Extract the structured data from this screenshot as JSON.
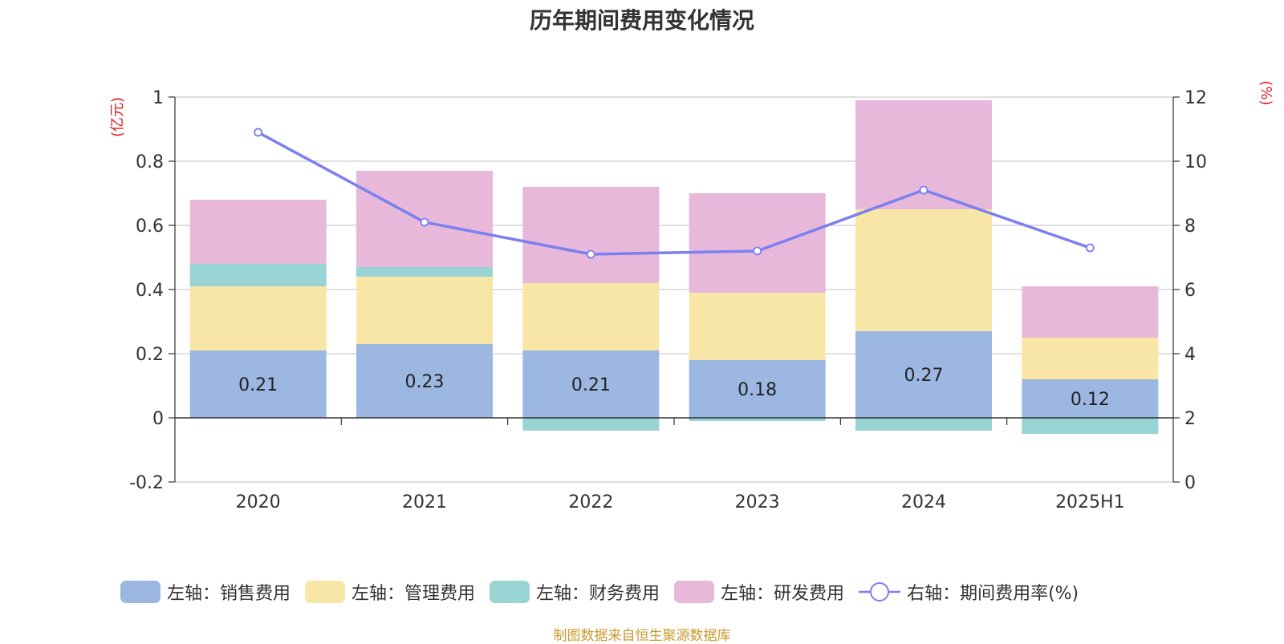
{
  "title": "历年期间费用变化情况",
  "source": "制图数据来自恒生聚源数据库",
  "chart_data": {
    "type": "bar",
    "stacked": true,
    "categories": [
      "2020",
      "2021",
      "2022",
      "2023",
      "2024",
      "2025H1"
    ],
    "left_axis": {
      "label": "(亿元)",
      "ylim": [
        -0.2,
        1
      ],
      "ticks": [
        "-0.2",
        "0",
        "0.2",
        "0.4",
        "0.6",
        "0.8",
        "1"
      ]
    },
    "right_axis": {
      "label": "(%)",
      "ylim": [
        0,
        12
      ],
      "ticks": [
        "0",
        "2",
        "4",
        "6",
        "8",
        "10",
        "12"
      ]
    },
    "grid": true,
    "legend_position": "bottom",
    "series": [
      {
        "name": "左轴：销售费用",
        "axis": "left",
        "color": "#9cb8e2",
        "values": [
          0.21,
          0.23,
          0.21,
          0.18,
          0.27,
          0.12
        ],
        "labels": [
          "0.21",
          "0.23",
          "0.21",
          "0.18",
          "0.27",
          "0.12"
        ]
      },
      {
        "name": "左轴：管理费用",
        "axis": "left",
        "color": "#f8e6a6",
        "values": [
          0.2,
          0.21,
          0.21,
          0.21,
          0.38,
          0.13
        ]
      },
      {
        "name": "左轴：财务费用",
        "axis": "left",
        "color": "#97d4d3",
        "values": [
          0.07,
          0.03,
          -0.04,
          -0.01,
          -0.04,
          -0.05
        ]
      },
      {
        "name": "左轴：研发费用",
        "axis": "left",
        "color": "#e7b8da",
        "values": [
          0.2,
          0.3,
          0.3,
          0.31,
          0.34,
          0.16
        ]
      },
      {
        "name": "右轴：期间费用率(%)",
        "axis": "right",
        "type": "line",
        "color": "#7b7ff0",
        "values": [
          10.9,
          8.1,
          7.1,
          7.2,
          9.1,
          7.3
        ]
      }
    ]
  }
}
